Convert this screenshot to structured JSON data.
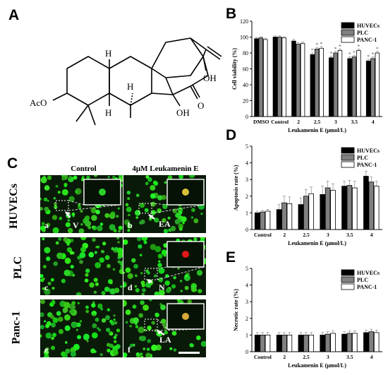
{
  "panels": {
    "A": "A",
    "B": "B",
    "C": "C",
    "D": "D",
    "E": "E"
  },
  "structure": {
    "labels": [
      "H",
      "H",
      "H",
      "OH",
      "O",
      "OH",
      "AcO"
    ]
  },
  "micrographs": {
    "col_headers": [
      "Control",
      "4μM Leukamenin E"
    ],
    "row_headers": [
      "HUVECs",
      "PLC",
      "Panc-1"
    ],
    "cells": [
      {
        "id": "a",
        "callout": "V",
        "inset_color": "#2bd12b"
      },
      {
        "id": "b",
        "callout": "EA",
        "inset_color": "#d8c03a"
      },
      {
        "id": "c",
        "callout": "",
        "inset_color": ""
      },
      {
        "id": "d",
        "callout": "N",
        "inset_color": "#e01818"
      },
      {
        "id": "e",
        "callout": "",
        "inset_color": ""
      },
      {
        "id": "f",
        "callout": "LA",
        "inset_color": "#d8a83a"
      }
    ]
  },
  "chart_data": [
    {
      "panel": "B",
      "type": "bar",
      "categories": [
        "DMSO",
        "Control",
        "2",
        "2.5",
        "3",
        "3.5",
        "4"
      ],
      "series": [
        {
          "name": "HUVECs",
          "values": [
            98,
            100,
            95,
            78,
            74,
            73,
            70
          ],
          "errors": [
            1.5,
            1.5,
            2,
            2,
            2,
            2,
            2
          ]
        },
        {
          "name": "PLC",
          "values": [
            99,
            100,
            91,
            85,
            80,
            75,
            73
          ],
          "errors": [
            1.5,
            1.5,
            2,
            2,
            2,
            2,
            2
          ]
        },
        {
          "name": "PANC-1",
          "values": [
            97,
            99,
            92,
            86,
            83,
            83,
            80
          ],
          "errors": [
            1.5,
            1.5,
            2,
            2,
            2,
            2,
            2
          ]
        }
      ],
      "asterisks": [
        [],
        [],
        [
          false,
          false,
          false
        ],
        [
          true,
          true,
          true
        ],
        [
          true,
          true,
          true
        ],
        [
          true,
          true,
          true
        ],
        [
          true,
          true,
          true
        ]
      ],
      "ylim": [
        0,
        120
      ],
      "yticks": [
        0,
        20,
        40,
        60,
        80,
        100,
        120
      ],
      "ylabel": "Cell viability (%)",
      "xlabel": "Leukamenin E  (μmol/L)",
      "legend": "top-right",
      "colors": [
        "#000000",
        "#808080",
        "#ffffff"
      ]
    },
    {
      "panel": "D",
      "type": "bar",
      "categories": [
        "Control",
        "2",
        "2.5",
        "3",
        "3.5",
        "4"
      ],
      "series": [
        {
          "name": "HUVECs",
          "values": [
            1.0,
            1.2,
            1.5,
            2.1,
            2.6,
            3.2
          ],
          "errors": [
            0.1,
            0.3,
            0.4,
            0.5,
            0.3,
            0.3
          ]
        },
        {
          "name": "PLC",
          "values": [
            1.05,
            1.6,
            2.0,
            2.5,
            2.65,
            2.85
          ],
          "errors": [
            0.1,
            0.4,
            0.4,
            0.4,
            0.3,
            0.3
          ]
        },
        {
          "name": "PANC-1",
          "values": [
            1.1,
            1.55,
            2.15,
            2.35,
            2.5,
            2.6
          ],
          "errors": [
            0.1,
            0.4,
            0.4,
            0.4,
            0.4,
            0.3
          ]
        }
      ],
      "ylim": [
        0,
        5
      ],
      "yticks": [
        0,
        1,
        2,
        3,
        4,
        5
      ],
      "ylabel": "Apoptosis rate (%)",
      "xlabel": "Leukamenin E  (μmol/L)",
      "legend": "top-right",
      "colors": [
        "#000000",
        "#808080",
        "#ffffff"
      ]
    },
    {
      "panel": "E",
      "type": "bar",
      "categories": [
        "Control",
        "2",
        "2.5",
        "3",
        "3.5",
        "4"
      ],
      "series": [
        {
          "name": "HUVECs",
          "values": [
            1.0,
            1.0,
            1.0,
            1.0,
            1.05,
            1.15
          ],
          "errors": [
            0.15,
            0.15,
            0.15,
            0.15,
            0.15,
            0.15
          ]
        },
        {
          "name": "PLC",
          "values": [
            1.0,
            1.0,
            1.0,
            1.05,
            1.1,
            1.2
          ],
          "errors": [
            0.15,
            0.15,
            0.15,
            0.15,
            0.15,
            0.15
          ]
        },
        {
          "name": "PANC-1",
          "values": [
            1.0,
            1.0,
            1.0,
            1.1,
            1.1,
            1.15
          ],
          "errors": [
            0.15,
            0.15,
            0.15,
            0.15,
            0.15,
            0.15
          ]
        }
      ],
      "ylim": [
        0,
        5
      ],
      "yticks": [
        0,
        1,
        2,
        3,
        4,
        5
      ],
      "ylabel": "Necrotic rate (%)",
      "xlabel": "Leukamenin E  (μmol/L)",
      "legend": "top-right",
      "colors": [
        "#000000",
        "#808080",
        "#ffffff"
      ]
    }
  ]
}
